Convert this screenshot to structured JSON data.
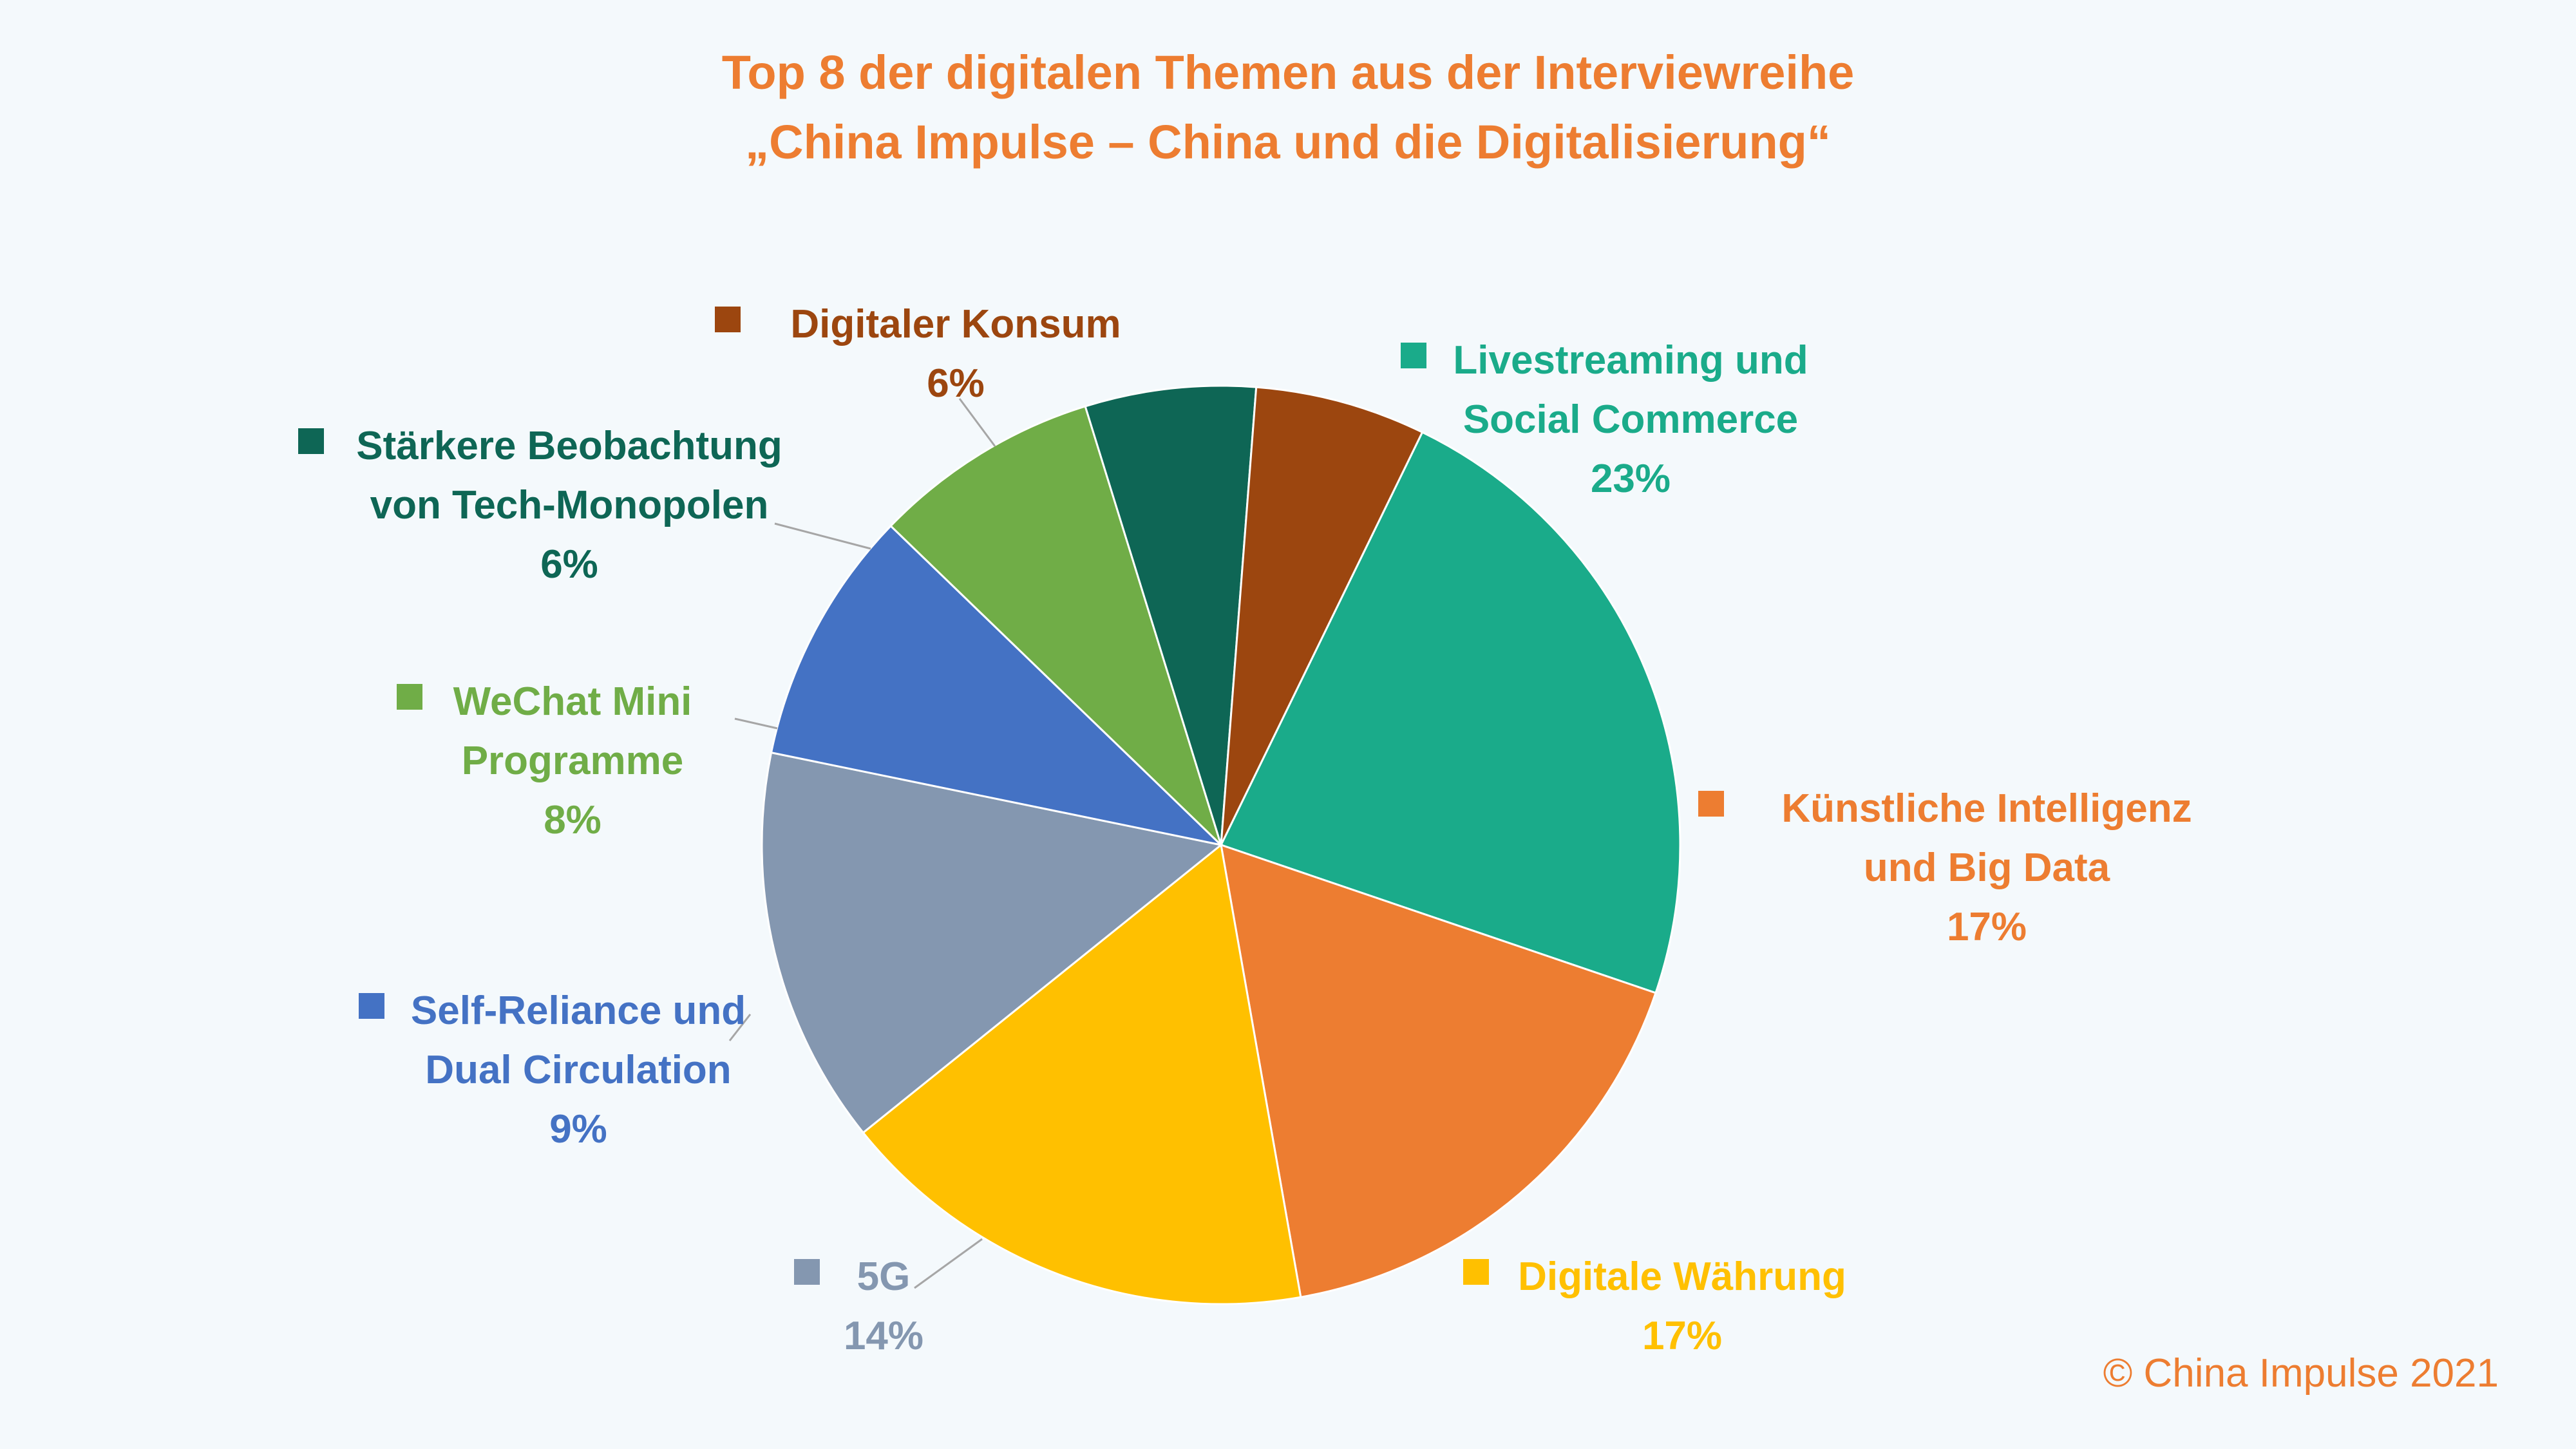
{
  "chart_data": {
    "type": "pie",
    "title": [
      "Top 8 der digitalen Themen aus der Interviewreihe",
      "„China Impulse – China und die Digitalisierung“"
    ],
    "unit": "%",
    "slices": [
      {
        "name_lines": [
          "Livestreaming und",
          "Social Commerce"
        ],
        "value": 23,
        "value_label": "23%",
        "color": "#1aab8a"
      },
      {
        "name_lines": [
          "Künstliche Intelligenz",
          "und Big Data"
        ],
        "value": 17,
        "value_label": "17%",
        "color": "#ed7d31"
      },
      {
        "name_lines": [
          "Digitale Währung"
        ],
        "value": 17,
        "value_label": "17%",
        "color": "#ffc000"
      },
      {
        "name_lines": [
          "5G"
        ],
        "value": 14,
        "value_label": "14%",
        "color": "#8497b0"
      },
      {
        "name_lines": [
          "Self-Reliance und",
          "Dual Circulation"
        ],
        "value": 9,
        "value_label": "9%",
        "color": "#4472c4"
      },
      {
        "name_lines": [
          "WeChat Mini",
          "Programme"
        ],
        "value": 8,
        "value_label": "8%",
        "color": "#70ad47"
      },
      {
        "name_lines": [
          "Stärkere Beobachtung",
          "von Tech-Monopolen"
        ],
        "value": 6,
        "value_label": "6%",
        "color": "#0e6655"
      },
      {
        "name_lines": [
          "Digitaler Konsum"
        ],
        "value": 6,
        "value_label": "6%",
        "color": "#9c460f"
      }
    ],
    "legend": "data labels next to slices with colored square markers",
    "copyright": "© China Impulse 2021"
  },
  "colors": {
    "title": "#ed7d31",
    "background": "#f4f9fc",
    "copyright": "#ed7d31",
    "leader_line": "#a6a6a6"
  }
}
